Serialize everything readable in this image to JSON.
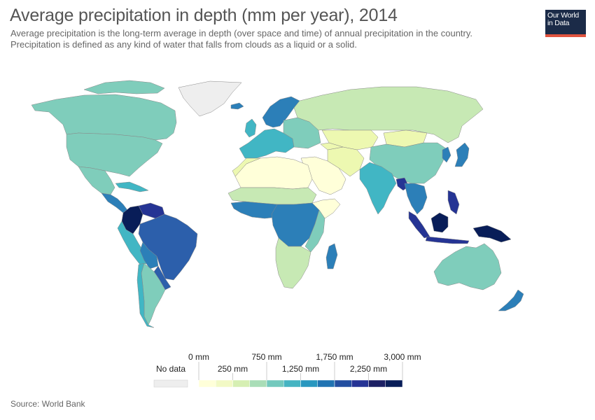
{
  "title": "Average precipitation in depth (mm per year), 2014",
  "subtitle_line1": "Average precipitation is the long-term average in depth (over space and time) of annual precipitation in the country.",
  "subtitle_line2": "Precipitation is defined as any kind of water that falls from clouds as a liquid or a solid.",
  "logo": {
    "line1": "Our World",
    "line2": "in Data",
    "bar_color": "#e0543f",
    "bg_color": "#1b2b48"
  },
  "source": "Source: World Bank",
  "legend": {
    "no_data_label": "No data",
    "no_data_color": "#eeeeee",
    "upper_labels": [
      "0 mm",
      "750 mm",
      "1,750 mm",
      "3,000 mm"
    ],
    "lower_labels": [
      "250 mm",
      "1,250 mm",
      "2,250 mm"
    ],
    "colors": [
      "#ffffd9",
      "#f2f9c5",
      "#d6efb3",
      "#a9ddb7",
      "#73c9bd",
      "#45b4c2",
      "#2897bf",
      "#2073b2",
      "#234ea0",
      "#253395",
      "#1c2064",
      "#081d58"
    ]
  },
  "regions": [
    {
      "name": "Greenland",
      "color": "#eeeeee"
    },
    {
      "name": "Canada",
      "color": "#7fcdbb"
    },
    {
      "name": "United States",
      "color": "#7fcdbb"
    },
    {
      "name": "Mexico",
      "color": "#7fcdbb"
    },
    {
      "name": "Central America",
      "color": "#2c7fb8"
    },
    {
      "name": "Caribbean",
      "color": "#41b6c4"
    },
    {
      "name": "Colombia",
      "color": "#081d58"
    },
    {
      "name": "Venezuela",
      "color": "#253494"
    },
    {
      "name": "Peru",
      "color": "#41b6c4"
    },
    {
      "name": "Brazil",
      "color": "#2c5fab"
    },
    {
      "name": "Bolivia",
      "color": "#2c7fb8"
    },
    {
      "name": "Paraguay",
      "color": "#2c5fab"
    },
    {
      "name": "Argentina",
      "color": "#7fcdbb"
    },
    {
      "name": "Chile",
      "color": "#41b6c4"
    },
    {
      "name": "Iceland",
      "color": "#2c7fb8"
    },
    {
      "name": "Scandinavia",
      "color": "#2c7fb8"
    },
    {
      "name": "Western Europe",
      "color": "#41b6c4"
    },
    {
      "name": "Eastern Europe",
      "color": "#7fcdbb"
    },
    {
      "name": "Russia",
      "color": "#c7e9b4"
    },
    {
      "name": "Kazakhstan",
      "color": "#edf8b1"
    },
    {
      "name": "Mongolia",
      "color": "#edf8b1"
    },
    {
      "name": "China",
      "color": "#7fcdbb"
    },
    {
      "name": "Japan",
      "color": "#2c7fb8"
    },
    {
      "name": "Korea",
      "color": "#2c7fb8"
    },
    {
      "name": "Middle East",
      "color": "#ffffd9"
    },
    {
      "name": "Iran",
      "color": "#edf8b1"
    },
    {
      "name": "Central Asia",
      "color": "#edf8b1"
    },
    {
      "name": "India",
      "color": "#41b6c4"
    },
    {
      "name": "Bangladesh",
      "color": "#253494"
    },
    {
      "name": "Southeast Asia",
      "color": "#2c7fb8"
    },
    {
      "name": "Malaysia",
      "color": "#253494"
    },
    {
      "name": "Indonesia",
      "color": "#253494"
    },
    {
      "name": "Borneo",
      "color": "#081d58"
    },
    {
      "name": "Papua New Guinea",
      "color": "#081d58"
    },
    {
      "name": "Philippines",
      "color": "#253494"
    },
    {
      "name": "Sahara",
      "color": "#ffffd9"
    },
    {
      "name": "Maghreb",
      "color": "#edf8b1"
    },
    {
      "name": "Sahel",
      "color": "#c7e9b4"
    },
    {
      "name": "West Africa",
      "color": "#2c7fb8"
    },
    {
      "name": "Central Africa",
      "color": "#2c7fb8"
    },
    {
      "name": "East Africa",
      "color": "#7fcdbb"
    },
    {
      "name": "Horn of Africa",
      "color": "#ffffd9"
    },
    {
      "name": "Southern Africa",
      "color": "#c7e9b4"
    },
    {
      "name": "Madagascar",
      "color": "#2c7fb8"
    },
    {
      "name": "Australia",
      "color": "#7fcdbb"
    },
    {
      "name": "New Zealand",
      "color": "#2c7fb8"
    }
  ]
}
